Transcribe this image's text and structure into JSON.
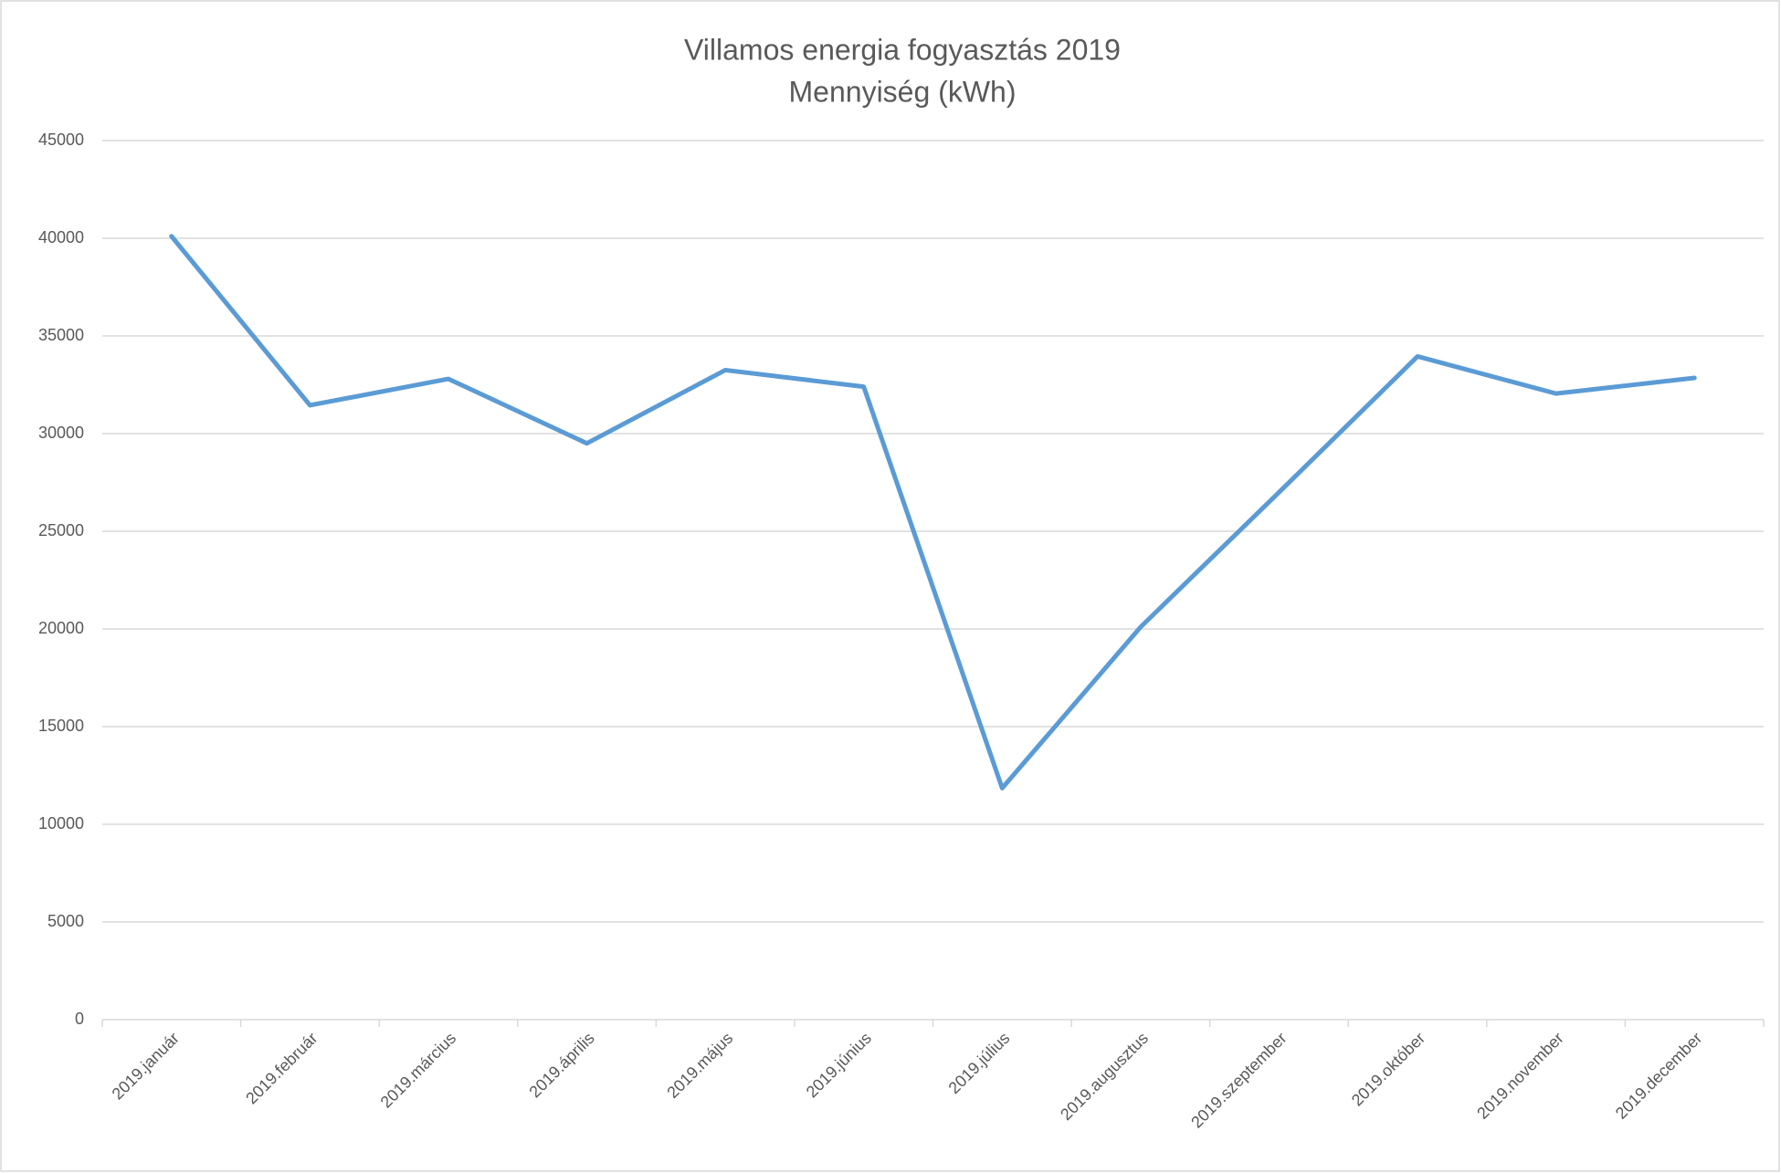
{
  "chart_data": {
    "type": "line",
    "title": "Villamos energia fogyasztás 2019",
    "subtitle": "Mennyiség (kWh)",
    "categories": [
      "2019.január",
      "2019.február",
      "2019.március",
      "2019.április",
      "2019.május",
      "2019.június",
      "2019.július",
      "2019.augusztus",
      "2019.szeptember",
      "2019.október",
      "2019.november",
      "2019.december"
    ],
    "values": [
      40100,
      31450,
      32800,
      29500,
      33250,
      32400,
      11850,
      20100,
      27000,
      33950,
      32050,
      32850
    ],
    "color": "#5b9bd5",
    "ylim": [
      0,
      45000
    ],
    "yticks": [
      0,
      5000,
      10000,
      15000,
      20000,
      25000,
      30000,
      35000,
      40000,
      45000
    ],
    "grid": true
  }
}
